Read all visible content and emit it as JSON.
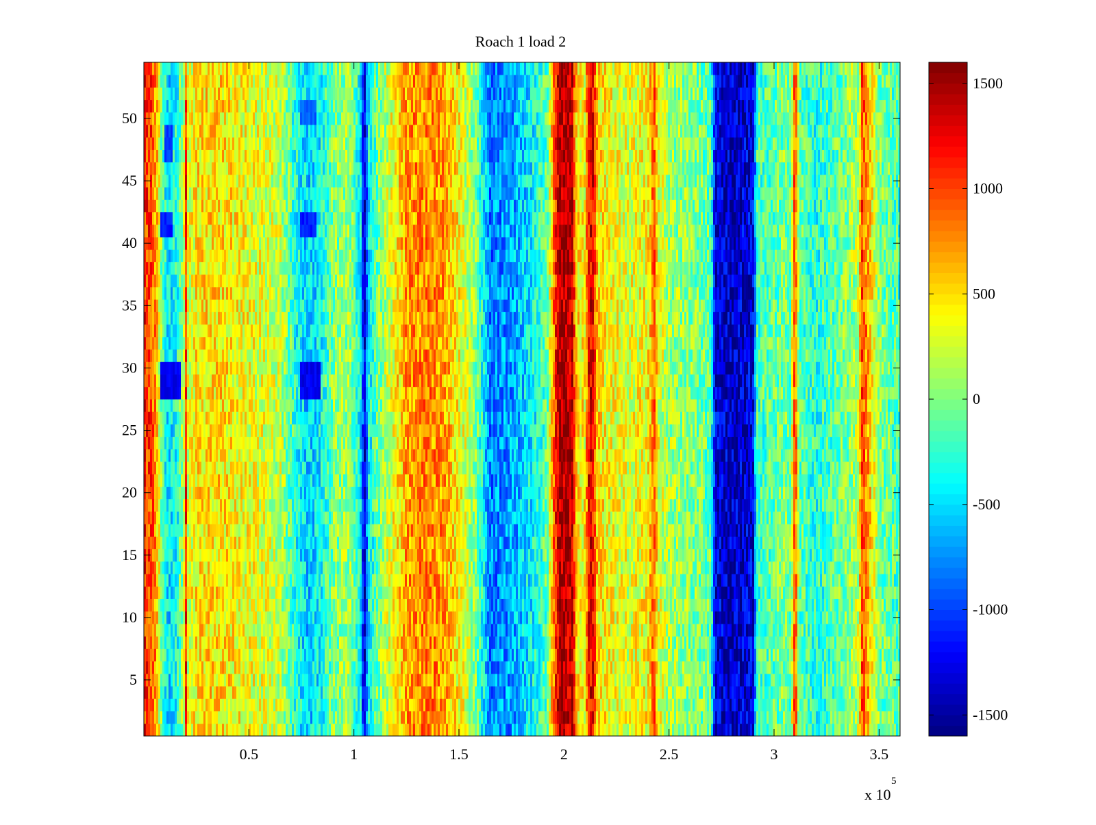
{
  "chart_data": {
    "type": "heatmap",
    "title": "Roach 1 load 2",
    "xlabel": "",
    "ylabel": "",
    "xlim": [
      0,
      360000
    ],
    "ylim": [
      0.5,
      54.5
    ],
    "n_rows": 54,
    "x_ticks": [
      50000,
      100000,
      150000,
      200000,
      250000,
      300000,
      350000
    ],
    "x_tick_labels": [
      "0.5",
      "1",
      "1.5",
      "2",
      "2.5",
      "3",
      "3.5"
    ],
    "x_exponent_label": "x 10",
    "x_exponent_power": "5",
    "y_ticks": [
      5,
      10,
      15,
      20,
      25,
      30,
      35,
      40,
      45,
      50
    ],
    "y_tick_labels": [
      "5",
      "10",
      "15",
      "20",
      "25",
      "30",
      "35",
      "40",
      "45",
      "50"
    ],
    "colormap": "jet",
    "clim": [
      -1600,
      1600
    ],
    "colorbar": {
      "ticks": [
        -1500,
        -1000,
        -500,
        0,
        500,
        1000,
        1500
      ],
      "tick_labels": [
        "-1500",
        "-1000",
        "-500",
        "0",
        "500",
        "1000",
        "1500"
      ]
    },
    "column_profile": {
      "x": [
        0,
        3000,
        6000,
        9000,
        12000,
        16000,
        19000,
        20000,
        21000,
        25000,
        35000,
        50000,
        65000,
        72000,
        78000,
        84000,
        90000,
        98000,
        103000,
        105000,
        107000,
        112000,
        118000,
        125000,
        135000,
        143000,
        150000,
        158000,
        165000,
        175000,
        185000,
        192000,
        196000,
        198000,
        204000,
        206000,
        210000,
        212000,
        214000,
        216000,
        220000,
        230000,
        240000,
        243000,
        245000,
        250000,
        262000,
        270000,
        272000,
        280000,
        290000,
        292000,
        300000,
        305000,
        308000,
        310000,
        312000,
        320000,
        335000,
        340000,
        342000,
        350000,
        360000
      ],
      "values": [
        1100,
        1000,
        700,
        -200,
        -500,
        -300,
        200,
        1100,
        250,
        450,
        500,
        350,
        200,
        -300,
        -550,
        -400,
        0,
        100,
        -400,
        -1400,
        -400,
        0,
        300,
        700,
        800,
        700,
        400,
        0,
        -800,
        -700,
        -400,
        -100,
        1100,
        1500,
        1400,
        500,
        400,
        1300,
        1200,
        500,
        400,
        300,
        400,
        900,
        300,
        100,
        0,
        -100,
        -1300,
        -1400,
        -1300,
        -200,
        -100,
        0,
        -100,
        1100,
        -100,
        -300,
        0,
        200,
        1000,
        0,
        -200
      ]
    },
    "anomalies": [
      {
        "x0": 8000,
        "x1": 18000,
        "rows": [
          28,
          29,
          30
        ],
        "value": -1250
      },
      {
        "x0": 74000,
        "x1": 84000,
        "rows": [
          28,
          29,
          30
        ],
        "value": -1250
      },
      {
        "x0": 8000,
        "x1": 14000,
        "rows": [
          41,
          42
        ],
        "value": -1100
      },
      {
        "x0": 74000,
        "x1": 82000,
        "rows": [
          41,
          42
        ],
        "value": -1100
      },
      {
        "x0": 10000,
        "x1": 14000,
        "rows": [
          47,
          48,
          49
        ],
        "value": -1000
      },
      {
        "x0": 74000,
        "x1": 82000,
        "rows": [
          50,
          51
        ],
        "value": -900
      }
    ]
  }
}
